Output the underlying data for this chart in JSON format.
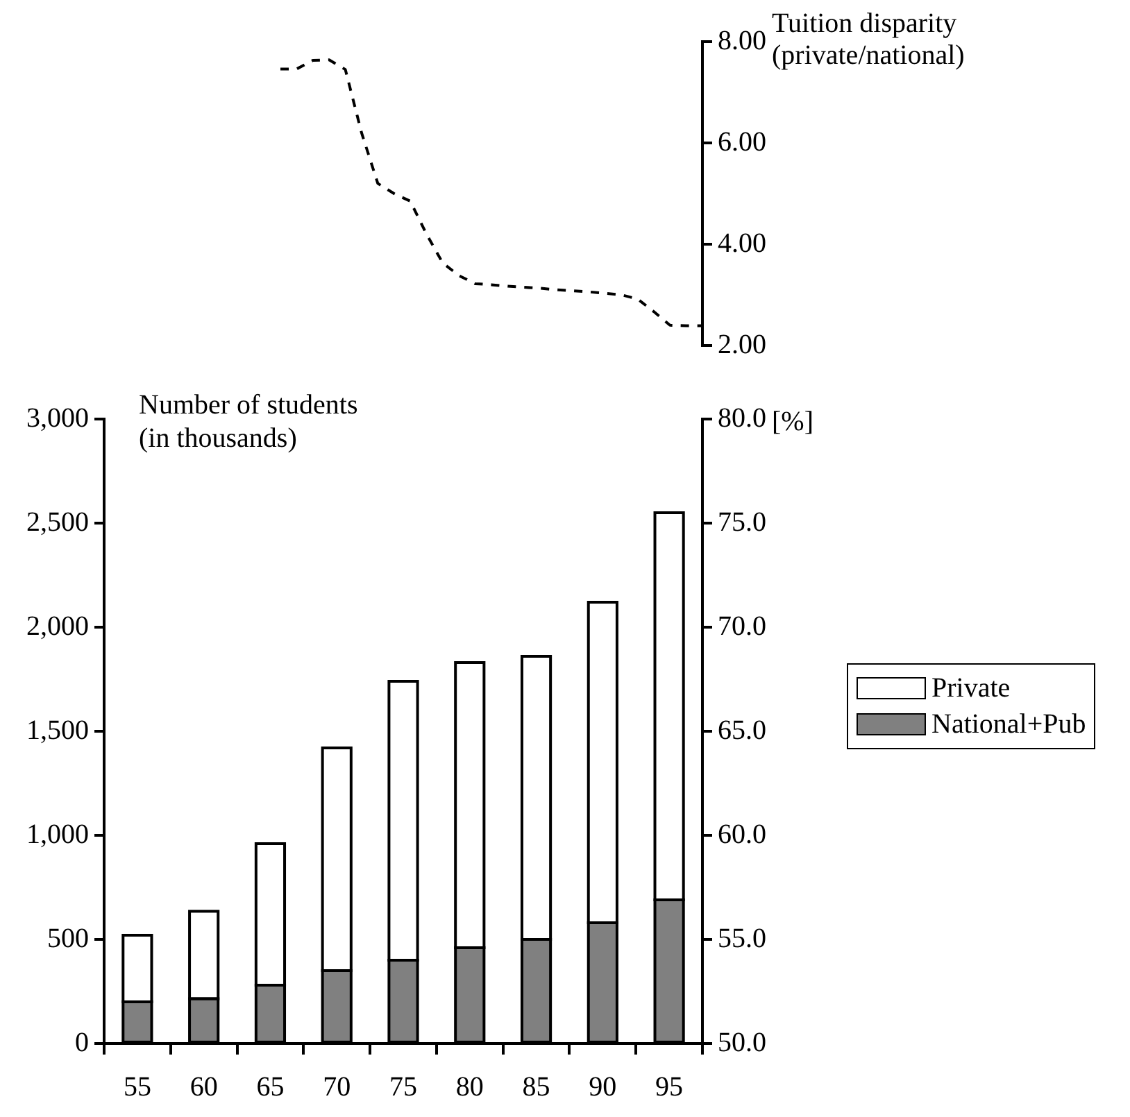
{
  "chart_data": [
    {
      "type": "line",
      "ylabel": "Tuition disparity\n(private/national)",
      "ylim": [
        2,
        8
      ],
      "yticks": [
        {
          "value": 2,
          "label": "2.00"
        },
        {
          "value": 4,
          "label": "4.00"
        },
        {
          "value": 6,
          "label": "6.00"
        },
        {
          "value": 8,
          "label": "8.00"
        }
      ],
      "tick_labels": "y",
      "line_style": "dashed",
      "categories": [
        null,
        null,
        null,
        null,
        null,
        null,
        null,
        null,
        null,
        null,
        null,
        null,
        null,
        null,
        null,
        null,
        null,
        null,
        null,
        null,
        null,
        null,
        null,
        null,
        null,
        null,
        null
      ],
      "series": [
        {
          "color": "#000000",
          "values": [
            7.46,
            7.46,
            7.63,
            7.64,
            7.45,
            6.2,
            5.2,
            5.0,
            4.85,
            4.2,
            3.63,
            3.38,
            3.22,
            3.2,
            3.17,
            3.15,
            3.13,
            3.1,
            3.08,
            3.06,
            3.03,
            3.0,
            2.92,
            2.67,
            2.4,
            2.39,
            2.39
          ]
        }
      ]
    },
    {
      "type": "bar",
      "stacked": true,
      "ylabel": "Number of students\n(in thousands)",
      "y2label": "[%]",
      "legend": "right",
      "categories": [
        "55",
        "60",
        "65",
        "70",
        "75",
        "80",
        "85",
        "90",
        "95"
      ],
      "ylim": [
        0,
        3000
      ],
      "yticks": [
        0,
        500,
        {
          "value": 1000,
          "label": "1,000"
        },
        {
          "value": 1500,
          "label": "1,500"
        },
        {
          "value": 2000,
          "label": "2,000"
        },
        {
          "value": 2500,
          "label": "2,500"
        },
        {
          "value": 3000,
          "label": "3,000"
        }
      ],
      "y2lim": [
        50,
        80
      ],
      "y2ticks": [
        {
          "value": 50,
          "label": "50.0"
        },
        {
          "value": 55,
          "label": "55.0"
        },
        {
          "value": 60,
          "label": "60.0"
        },
        {
          "value": 65,
          "label": "65.0"
        },
        {
          "value": 70,
          "label": "70.0"
        },
        {
          "value": 75,
          "label": "75.0"
        },
        {
          "value": 80,
          "label": "80.0"
        }
      ],
      "series": [
        {
          "name": "National+Pub",
          "color": "#808080",
          "values": [
            200,
            215,
            280,
            350,
            400,
            460,
            500,
            580,
            690
          ]
        },
        {
          "name": "Private",
          "color": "#ffffff",
          "values": [
            320,
            420,
            680,
            1070,
            1340,
            1370,
            1360,
            1540,
            1860
          ]
        }
      ]
    }
  ]
}
